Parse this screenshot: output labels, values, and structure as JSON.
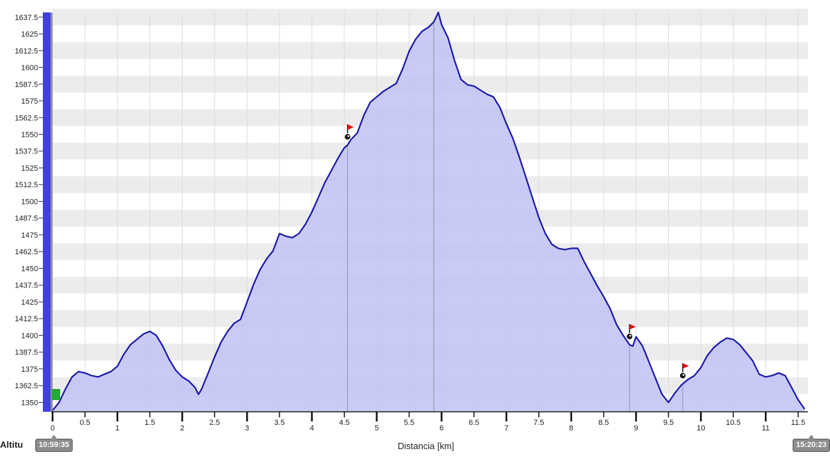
{
  "chart_data": {
    "type": "area",
    "title": "",
    "xlabel": "Distancia [km]",
    "ylabel": "Altitu",
    "xlim": [
      0,
      11.65
    ],
    "ylim": [
      1343,
      1641
    ],
    "y_ticks": [
      "1350",
      "1362.5",
      "1375",
      "1387.5",
      "1400",
      "1412.5",
      "1425",
      "1437.5",
      "1450",
      "1462.5",
      "1475",
      "1487.5",
      "1500",
      "1512.5",
      "1525",
      "1537.5",
      "1550",
      "1562.5",
      "1575",
      "1587.5",
      "1600",
      "1612.5",
      "1625",
      "1637.5"
    ],
    "x_ticks": [
      "0",
      "0.5",
      "1",
      "1.5",
      "2",
      "2.5",
      "3",
      "3.5",
      "4",
      "4.5",
      "5",
      "5.5",
      "6",
      "6.5",
      "7",
      "7.5",
      "8",
      "8.5",
      "9",
      "9.5",
      "10",
      "10.5",
      "11",
      "11.5"
    ],
    "grid": true,
    "start_time": "10:59:35",
    "end_time": "15:20:23",
    "colors": {
      "line": "#1a1aa8",
      "fill": "#c4c4f6",
      "axis": "#4040e0",
      "start_marker": "#22aa33",
      "flag": "#e01010"
    },
    "series": [
      {
        "name": "",
        "x": [
          0,
          0.1,
          0.2,
          0.3,
          0.4,
          0.5,
          0.6,
          0.7,
          0.8,
          0.9,
          1.0,
          1.1,
          1.2,
          1.3,
          1.4,
          1.5,
          1.6,
          1.7,
          1.8,
          1.9,
          2.0,
          2.1,
          2.2,
          2.25,
          2.3,
          2.4,
          2.5,
          2.6,
          2.7,
          2.8,
          2.9,
          3.0,
          3.1,
          3.2,
          3.3,
          3.4,
          3.5,
          3.6,
          3.7,
          3.8,
          3.9,
          4.0,
          4.1,
          4.2,
          4.3,
          4.4,
          4.5,
          4.55,
          4.6,
          4.7,
          4.8,
          4.9,
          5.0,
          5.1,
          5.2,
          5.3,
          5.4,
          5.5,
          5.6,
          5.7,
          5.8,
          5.88,
          5.95,
          6.0,
          6.1,
          6.2,
          6.3,
          6.4,
          6.5,
          6.6,
          6.7,
          6.8,
          6.9,
          7.0,
          7.1,
          7.2,
          7.3,
          7.4,
          7.5,
          7.6,
          7.7,
          7.8,
          7.9,
          8.0,
          8.1,
          8.2,
          8.3,
          8.4,
          8.5,
          8.6,
          8.7,
          8.8,
          8.9,
          8.95,
          9.0,
          9.1,
          9.2,
          9.3,
          9.4,
          9.5,
          9.6,
          9.7,
          9.8,
          9.9,
          10.0,
          10.1,
          10.2,
          10.3,
          10.4,
          10.5,
          10.6,
          10.7,
          10.8,
          10.9,
          11.0,
          11.1,
          11.2,
          11.3,
          11.4,
          11.5,
          11.6
        ],
        "y": [
          1344,
          1350,
          1360,
          1369,
          1373,
          1372,
          1370,
          1369,
          1371,
          1373,
          1377,
          1386,
          1393,
          1397,
          1401,
          1403,
          1400,
          1392,
          1382,
          1374,
          1369,
          1366,
          1361,
          1356,
          1360,
          1372,
          1384,
          1395,
          1403,
          1409,
          1412,
          1425,
          1438,
          1449,
          1457,
          1463,
          1476,
          1474,
          1473,
          1476,
          1483,
          1492,
          1503,
          1514,
          1523,
          1532,
          1540,
          1542,
          1546,
          1551,
          1564,
          1574,
          1578,
          1582,
          1585,
          1588,
          1599,
          1612,
          1621,
          1627,
          1630,
          1634,
          1641,
          1632,
          1622,
          1605,
          1591,
          1587,
          1586,
          1583,
          1580,
          1578,
          1570,
          1558,
          1547,
          1533,
          1518,
          1503,
          1488,
          1476,
          1468,
          1465,
          1464,
          1465,
          1465,
          1455,
          1446,
          1437,
          1429,
          1420,
          1408,
          1400,
          1393,
          1392,
          1399,
          1392,
          1380,
          1368,
          1356,
          1350,
          1357,
          1363,
          1367,
          1370,
          1376,
          1385,
          1391,
          1395,
          1398,
          1397,
          1393,
          1387,
          1381,
          1371,
          1369,
          1370,
          1372,
          1370,
          1361,
          1352,
          1345
        ]
      }
    ],
    "waypoints": [
      {
        "label": "",
        "x": 4.55
      },
      {
        "label": "",
        "x": 8.9
      },
      {
        "label": "",
        "x": 9.72
      }
    ],
    "vertical_markers": [
      4.55,
      5.88,
      8.9,
      9.72
    ]
  }
}
